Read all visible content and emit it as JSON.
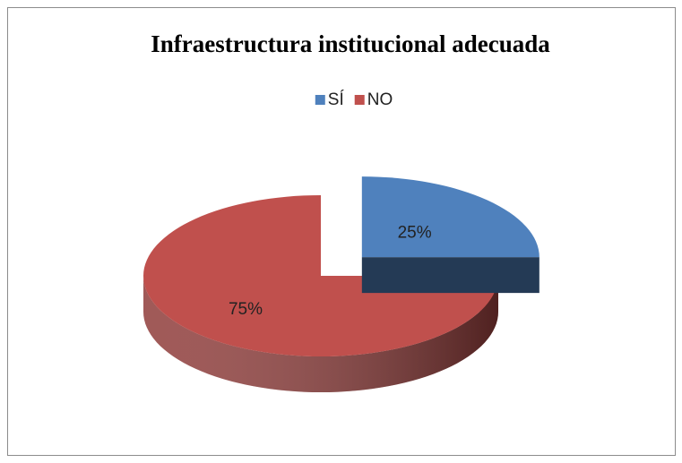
{
  "chart_data": {
    "type": "pie",
    "title": "Infraestructura institucional adecuada",
    "categories": [
      "SÍ",
      "NO"
    ],
    "values": [
      25,
      75
    ],
    "value_labels": [
      "25%",
      "75%"
    ],
    "colors": [
      "#4f81bd",
      "#c0504d"
    ],
    "legend": "top"
  }
}
